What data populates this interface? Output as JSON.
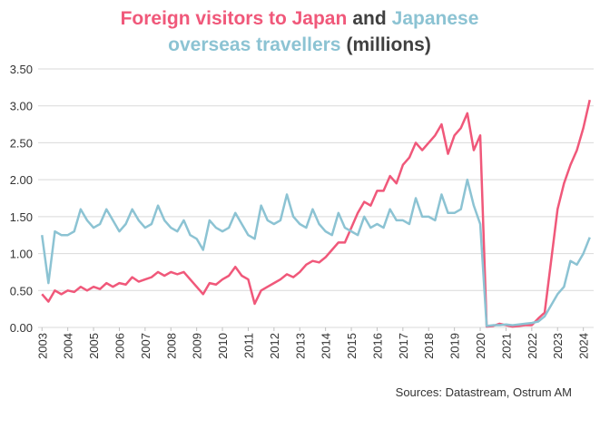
{
  "chart_data": {
    "type": "line",
    "title_lines": [
      [
        {
          "text": "Foreign visitors to Japan",
          "color": "#f0587a"
        },
        {
          "text": "and",
          "color": "#404040"
        },
        {
          "text": "Japanese",
          "color": "#8cc3d3"
        }
      ],
      [
        {
          "text": "overseas travellers",
          "color": "#8cc3d3"
        },
        {
          "text": "(millions)",
          "color": "#404040"
        }
      ]
    ],
    "source": "Sources: Datastream, Ostrum AM",
    "x": [
      2003,
      2003.25,
      2003.5,
      2003.75,
      2004,
      2004.25,
      2004.5,
      2004.75,
      2005,
      2005.25,
      2005.5,
      2005.75,
      2006,
      2006.25,
      2006.5,
      2006.75,
      2007,
      2007.25,
      2007.5,
      2007.75,
      2008,
      2008.25,
      2008.5,
      2008.75,
      2009,
      2009.25,
      2009.5,
      2009.75,
      2010,
      2010.25,
      2010.5,
      2010.75,
      2011,
      2011.25,
      2011.5,
      2011.75,
      2012,
      2012.25,
      2012.5,
      2012.75,
      2013,
      2013.25,
      2013.5,
      2013.75,
      2014,
      2014.25,
      2014.5,
      2014.75,
      2015,
      2015.25,
      2015.5,
      2015.75,
      2016,
      2016.25,
      2016.5,
      2016.75,
      2017,
      2017.25,
      2017.5,
      2017.75,
      2018,
      2018.25,
      2018.5,
      2018.75,
      2019,
      2019.25,
      2019.5,
      2019.75,
      2020,
      2020.25,
      2020.5,
      2020.75,
      2021,
      2021.25,
      2021.5,
      2021.75,
      2022,
      2022.25,
      2022.5,
      2022.75,
      2023,
      2023.25,
      2023.5,
      2023.75,
      2024,
      2024.25
    ],
    "series": [
      {
        "name": "Foreign visitors to Japan",
        "color": "#f0587a",
        "values": [
          0.45,
          0.35,
          0.5,
          0.45,
          0.5,
          0.48,
          0.55,
          0.5,
          0.55,
          0.52,
          0.6,
          0.55,
          0.6,
          0.58,
          0.68,
          0.62,
          0.65,
          0.68,
          0.75,
          0.7,
          0.75,
          0.72,
          0.75,
          0.65,
          0.55,
          0.45,
          0.6,
          0.58,
          0.65,
          0.7,
          0.82,
          0.7,
          0.65,
          0.32,
          0.5,
          0.55,
          0.6,
          0.65,
          0.72,
          0.68,
          0.75,
          0.85,
          0.9,
          0.88,
          0.95,
          1.05,
          1.15,
          1.15,
          1.35,
          1.55,
          1.7,
          1.65,
          1.85,
          1.85,
          2.05,
          1.95,
          2.2,
          2.3,
          2.5,
          2.4,
          2.5,
          2.6,
          2.75,
          2.35,
          2.6,
          2.7,
          2.9,
          2.4,
          2.6,
          0.01,
          0.02,
          0.05,
          0.03,
          0.01,
          0.02,
          0.03,
          0.03,
          0.12,
          0.2,
          0.9,
          1.6,
          1.95,
          2.2,
          2.4,
          2.7,
          3.08
        ]
      },
      {
        "name": "Japanese overseas travellers",
        "color": "#8cc3d3",
        "values": [
          1.25,
          0.6,
          1.3,
          1.25,
          1.25,
          1.3,
          1.6,
          1.45,
          1.35,
          1.4,
          1.6,
          1.45,
          1.3,
          1.4,
          1.6,
          1.45,
          1.35,
          1.4,
          1.65,
          1.45,
          1.35,
          1.3,
          1.45,
          1.25,
          1.2,
          1.05,
          1.45,
          1.35,
          1.3,
          1.35,
          1.55,
          1.4,
          1.25,
          1.2,
          1.65,
          1.45,
          1.4,
          1.45,
          1.8,
          1.5,
          1.4,
          1.35,
          1.6,
          1.4,
          1.3,
          1.25,
          1.55,
          1.35,
          1.3,
          1.25,
          1.5,
          1.35,
          1.4,
          1.35,
          1.6,
          1.45,
          1.45,
          1.4,
          1.75,
          1.5,
          1.5,
          1.45,
          1.8,
          1.55,
          1.55,
          1.6,
          2.0,
          1.65,
          1.4,
          0.02,
          0.03,
          0.03,
          0.04,
          0.03,
          0.04,
          0.05,
          0.06,
          0.08,
          0.15,
          0.3,
          0.45,
          0.55,
          0.9,
          0.85,
          1.0,
          1.22
        ]
      }
    ],
    "xlim": [
      2002.85,
      2024.4
    ],
    "xticks": [
      2003,
      2004,
      2005,
      2006,
      2007,
      2008,
      2009,
      2010,
      2011,
      2012,
      2013,
      2014,
      2015,
      2016,
      2017,
      2018,
      2019,
      2020,
      2021,
      2022,
      2023,
      2024
    ],
    "ylim": [
      0,
      3.5
    ],
    "yticks": [
      {
        "value": 0,
        "label": "0.00"
      },
      {
        "value": 0.5,
        "label": "0.50"
      },
      {
        "value": 1,
        "label": "1.00"
      },
      {
        "value": 1.5,
        "label": "1.50"
      },
      {
        "value": 2,
        "label": "2.00"
      },
      {
        "value": 2.5,
        "label": "2.50"
      },
      {
        "value": 3,
        "label": "3.00"
      },
      {
        "value": 3.5,
        "label": "3.50"
      }
    ],
    "grid": true
  }
}
